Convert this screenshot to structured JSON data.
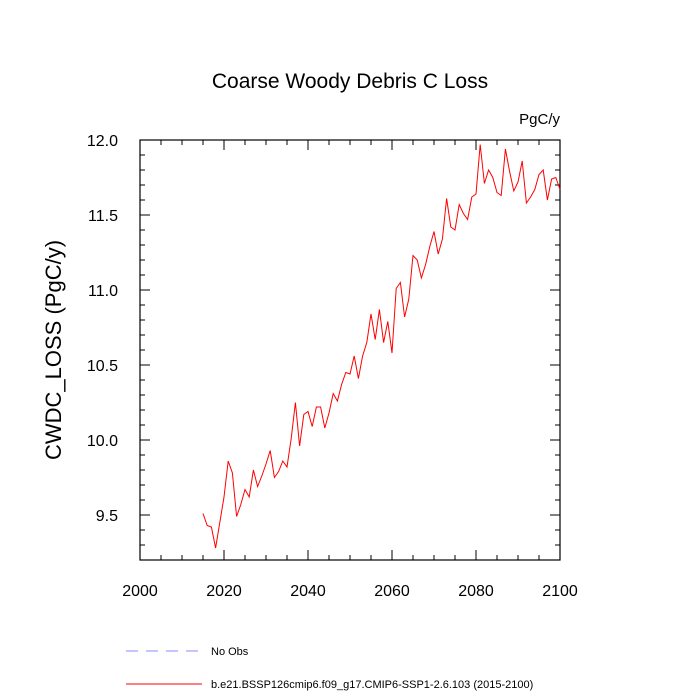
{
  "chart_data": {
    "type": "line",
    "title": "Coarse Woody Debris C Loss",
    "units": "PgC/y",
    "xlabel": "",
    "ylabel": "CWDC_LOSS  (PgC/y)",
    "xlim": [
      2000,
      2100
    ],
    "ylim": [
      9.2,
      12.0
    ],
    "xticks": [
      2000,
      2020,
      2040,
      2060,
      2080,
      2100
    ],
    "xtick_labels": [
      "2000",
      "2020",
      "2040",
      "2060",
      "2080",
      "2100"
    ],
    "yticks": [
      9.5,
      10.0,
      10.5,
      11.0,
      11.5,
      12.0
    ],
    "ytick_labels": [
      "9.5",
      "10.0",
      "10.5",
      "11.0",
      "11.5",
      "12.0"
    ],
    "series": [
      {
        "name": "b.e21.BSSP126cmip6.f09_g17.CMIP6-SSP1-2.6.103 (2015-2100)",
        "color": "#ff0000",
        "style": "solid",
        "x": [
          2015,
          2016,
          2017,
          2018,
          2019,
          2020,
          2021,
          2022,
          2023,
          2024,
          2025,
          2026,
          2027,
          2028,
          2029,
          2030,
          2031,
          2032,
          2033,
          2034,
          2035,
          2036,
          2037,
          2038,
          2039,
          2040,
          2041,
          2042,
          2043,
          2044,
          2045,
          2046,
          2047,
          2048,
          2049,
          2050,
          2051,
          2052,
          2053,
          2054,
          2055,
          2056,
          2057,
          2058,
          2059,
          2060,
          2061,
          2062,
          2063,
          2064,
          2065,
          2066,
          2067,
          2068,
          2069,
          2070,
          2071,
          2072,
          2073,
          2074,
          2075,
          2076,
          2077,
          2078,
          2079,
          2080,
          2081,
          2082,
          2083,
          2084,
          2085,
          2086,
          2087,
          2088,
          2089,
          2090,
          2091,
          2092,
          2093,
          2094,
          2095,
          2096,
          2097,
          2098,
          2099,
          2100
        ],
        "values": [
          9.51,
          9.43,
          9.42,
          9.28,
          9.45,
          9.62,
          9.86,
          9.78,
          9.49,
          9.57,
          9.67,
          9.62,
          9.8,
          9.69,
          9.76,
          9.84,
          9.93,
          9.75,
          9.79,
          9.86,
          9.82,
          10.01,
          10.25,
          9.96,
          10.17,
          10.19,
          10.09,
          10.22,
          10.22,
          10.08,
          10.18,
          10.31,
          10.26,
          10.37,
          10.45,
          10.44,
          10.56,
          10.41,
          10.56,
          10.65,
          10.84,
          10.67,
          10.87,
          10.65,
          10.79,
          10.58,
          11.01,
          11.05,
          10.82,
          10.94,
          11.23,
          11.2,
          11.08,
          11.17,
          11.29,
          11.39,
          11.24,
          11.34,
          11.61,
          11.42,
          11.4,
          11.57,
          11.51,
          11.47,
          11.62,
          11.64,
          11.97,
          11.71,
          11.8,
          11.75,
          11.65,
          11.63,
          11.94,
          11.79,
          11.66,
          11.72,
          11.86,
          11.58,
          11.62,
          11.67,
          11.77,
          11.8,
          11.6,
          11.74,
          11.75,
          11.67
        ]
      },
      {
        "name": "No Obs",
        "color": "#8a8aff",
        "style": "dashed",
        "x": [],
        "values": []
      }
    ],
    "grid": false,
    "legend_position": "bottom-left"
  }
}
